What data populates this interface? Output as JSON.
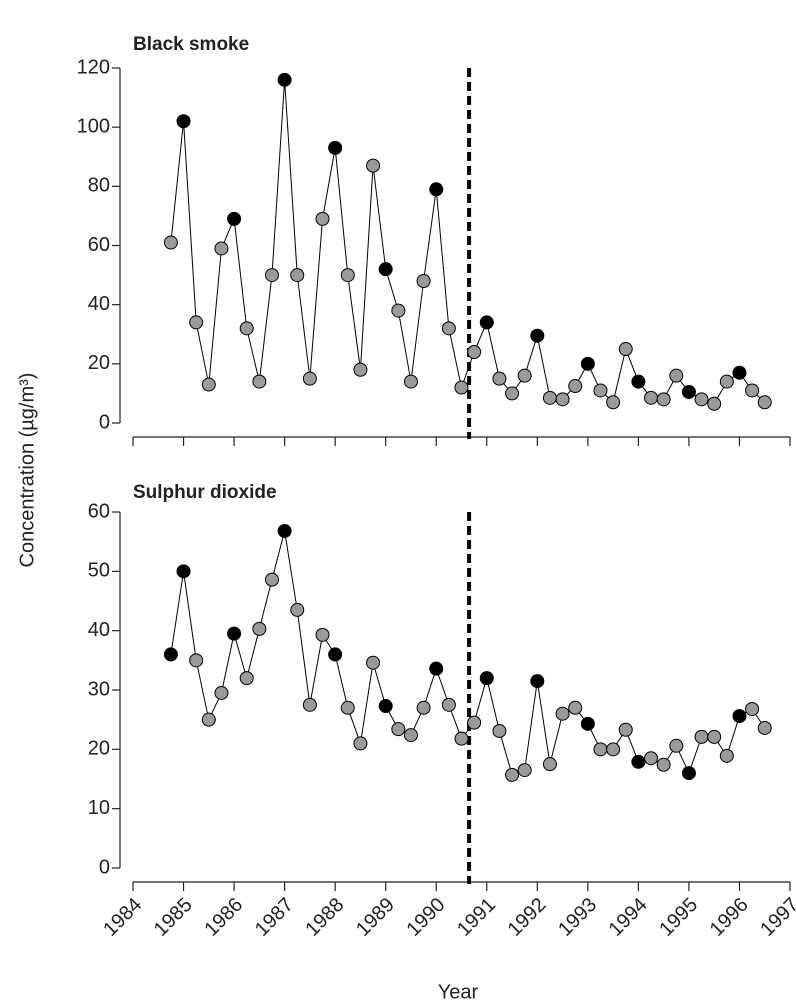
{
  "chart_data": [
    {
      "type": "line",
      "title": "Black smoke",
      "ylabel": "Concentration (µg/m³)",
      "x": [
        1984.75,
        1985,
        1985.25,
        1985.5,
        1985.75,
        1986,
        1986.25,
        1986.5,
        1986.75,
        1987,
        1987.25,
        1987.5,
        1987.75,
        1988,
        1988.25,
        1988.5,
        1988.75,
        1989,
        1989.25,
        1989.5,
        1989.75,
        1990,
        1990.25,
        1990.5,
        1990.75,
        1991,
        1991.25,
        1991.5,
        1991.75,
        1992,
        1992.25,
        1992.5,
        1992.75,
        1993,
        1993.25,
        1993.5,
        1993.75,
        1994,
        1994.25,
        1994.5,
        1994.75,
        1995,
        1995.25,
        1995.5,
        1995.75,
        1996,
        1996.25,
        1996.5
      ],
      "series": [
        {
          "color": "#000000",
          "values": [
            61,
            102,
            34,
            13,
            59,
            69,
            32,
            14,
            50,
            116,
            50,
            15,
            69,
            93,
            50,
            18,
            87,
            52,
            38,
            14,
            48,
            79,
            32,
            12,
            24,
            34,
            15,
            10,
            16,
            29.5,
            8.5,
            8,
            12.5,
            20,
            11,
            7,
            25,
            14,
            8.5,
            8,
            16,
            10.5,
            8,
            6.5,
            14,
            17,
            11,
            7
          ],
          "marker_colors": [
            "#9a9a9a",
            "#000000",
            "#9a9a9a",
            "#9a9a9a",
            "#9a9a9a",
            "#000000",
            "#9a9a9a",
            "#9a9a9a",
            "#9a9a9a",
            "#000000",
            "#9a9a9a",
            "#9a9a9a",
            "#9a9a9a",
            "#000000",
            "#9a9a9a",
            "#9a9a9a",
            "#9a9a9a",
            "#000000",
            "#9a9a9a",
            "#9a9a9a",
            "#9a9a9a",
            "#000000",
            "#9a9a9a",
            "#9a9a9a",
            "#9a9a9a",
            "#000000",
            "#9a9a9a",
            "#9a9a9a",
            "#9a9a9a",
            "#000000",
            "#9a9a9a",
            "#9a9a9a",
            "#9a9a9a",
            "#000000",
            "#9a9a9a",
            "#9a9a9a",
            "#9a9a9a",
            "#000000",
            "#9a9a9a",
            "#9a9a9a",
            "#9a9a9a",
            "#000000",
            "#9a9a9a",
            "#9a9a9a",
            "#9a9a9a",
            "#000000",
            "#9a9a9a",
            "#9a9a9a"
          ]
        }
      ],
      "xlim": [
        1984,
        1997
      ],
      "xticks": [
        1984,
        1985,
        1986,
        1987,
        1988,
        1989,
        1990,
        1991,
        1992,
        1993,
        1994,
        1995,
        1996,
        1997
      ],
      "show_xtick_labels": false,
      "ylim": [
        0,
        120
      ],
      "yticks": [
        0,
        20,
        40,
        60,
        80,
        100,
        120
      ],
      "reference_line": {
        "x": 1990.65,
        "style": "dashed"
      }
    },
    {
      "type": "line",
      "title": "Sulphur dioxide",
      "xlabel": "Year",
      "x": [
        1984.75,
        1985,
        1985.25,
        1985.5,
        1985.75,
        1986,
        1986.25,
        1986.5,
        1986.75,
        1987,
        1987.25,
        1987.5,
        1987.75,
        1988,
        1988.25,
        1988.5,
        1988.75,
        1989,
        1989.25,
        1989.5,
        1989.75,
        1990,
        1990.25,
        1990.5,
        1990.75,
        1991,
        1991.25,
        1991.5,
        1991.75,
        1992,
        1992.25,
        1992.5,
        1992.75,
        1993,
        1993.25,
        1993.5,
        1993.75,
        1994,
        1994.25,
        1994.5,
        1994.75,
        1995,
        1995.25,
        1995.5,
        1995.75,
        1996,
        1996.25,
        1996.5
      ],
      "series": [
        {
          "color": "#000000",
          "values": [
            36,
            50,
            35,
            25,
            29.5,
            39.5,
            32,
            40.3,
            48.6,
            56.8,
            43.5,
            27.5,
            39.3,
            36,
            27,
            21,
            34.6,
            27.3,
            23.4,
            22.4,
            27,
            33.6,
            27.5,
            21.8,
            24.5,
            32,
            23.1,
            15.7,
            16.5,
            31.5,
            17.5,
            26,
            27,
            24.3,
            20,
            20,
            23.3,
            17.9,
            18.5,
            17.4,
            20.6,
            16,
            22.1,
            22.1,
            18.9,
            25.6,
            26.8,
            23.6
          ],
          "marker_colors": [
            "#000000",
            "#000000",
            "#9a9a9a",
            "#9a9a9a",
            "#9a9a9a",
            "#000000",
            "#9a9a9a",
            "#9a9a9a",
            "#9a9a9a",
            "#000000",
            "#9a9a9a",
            "#9a9a9a",
            "#9a9a9a",
            "#000000",
            "#9a9a9a",
            "#9a9a9a",
            "#9a9a9a",
            "#000000",
            "#9a9a9a",
            "#9a9a9a",
            "#9a9a9a",
            "#000000",
            "#9a9a9a",
            "#9a9a9a",
            "#9a9a9a",
            "#000000",
            "#9a9a9a",
            "#9a9a9a",
            "#9a9a9a",
            "#000000",
            "#9a9a9a",
            "#9a9a9a",
            "#9a9a9a",
            "#000000",
            "#9a9a9a",
            "#9a9a9a",
            "#9a9a9a",
            "#000000",
            "#9a9a9a",
            "#9a9a9a",
            "#9a9a9a",
            "#000000",
            "#9a9a9a",
            "#9a9a9a",
            "#9a9a9a",
            "#000000",
            "#9a9a9a",
            "#9a9a9a"
          ]
        }
      ],
      "xlim": [
        1984,
        1997
      ],
      "xticks": [
        1984,
        1985,
        1986,
        1987,
        1988,
        1989,
        1990,
        1991,
        1992,
        1993,
        1994,
        1995,
        1996,
        1997
      ],
      "show_xtick_labels": true,
      "ylim": [
        0,
        60
      ],
      "yticks": [
        0,
        10,
        20,
        30,
        40,
        50,
        60
      ],
      "reference_line": {
        "x": 1990.65,
        "style": "dashed"
      }
    }
  ]
}
